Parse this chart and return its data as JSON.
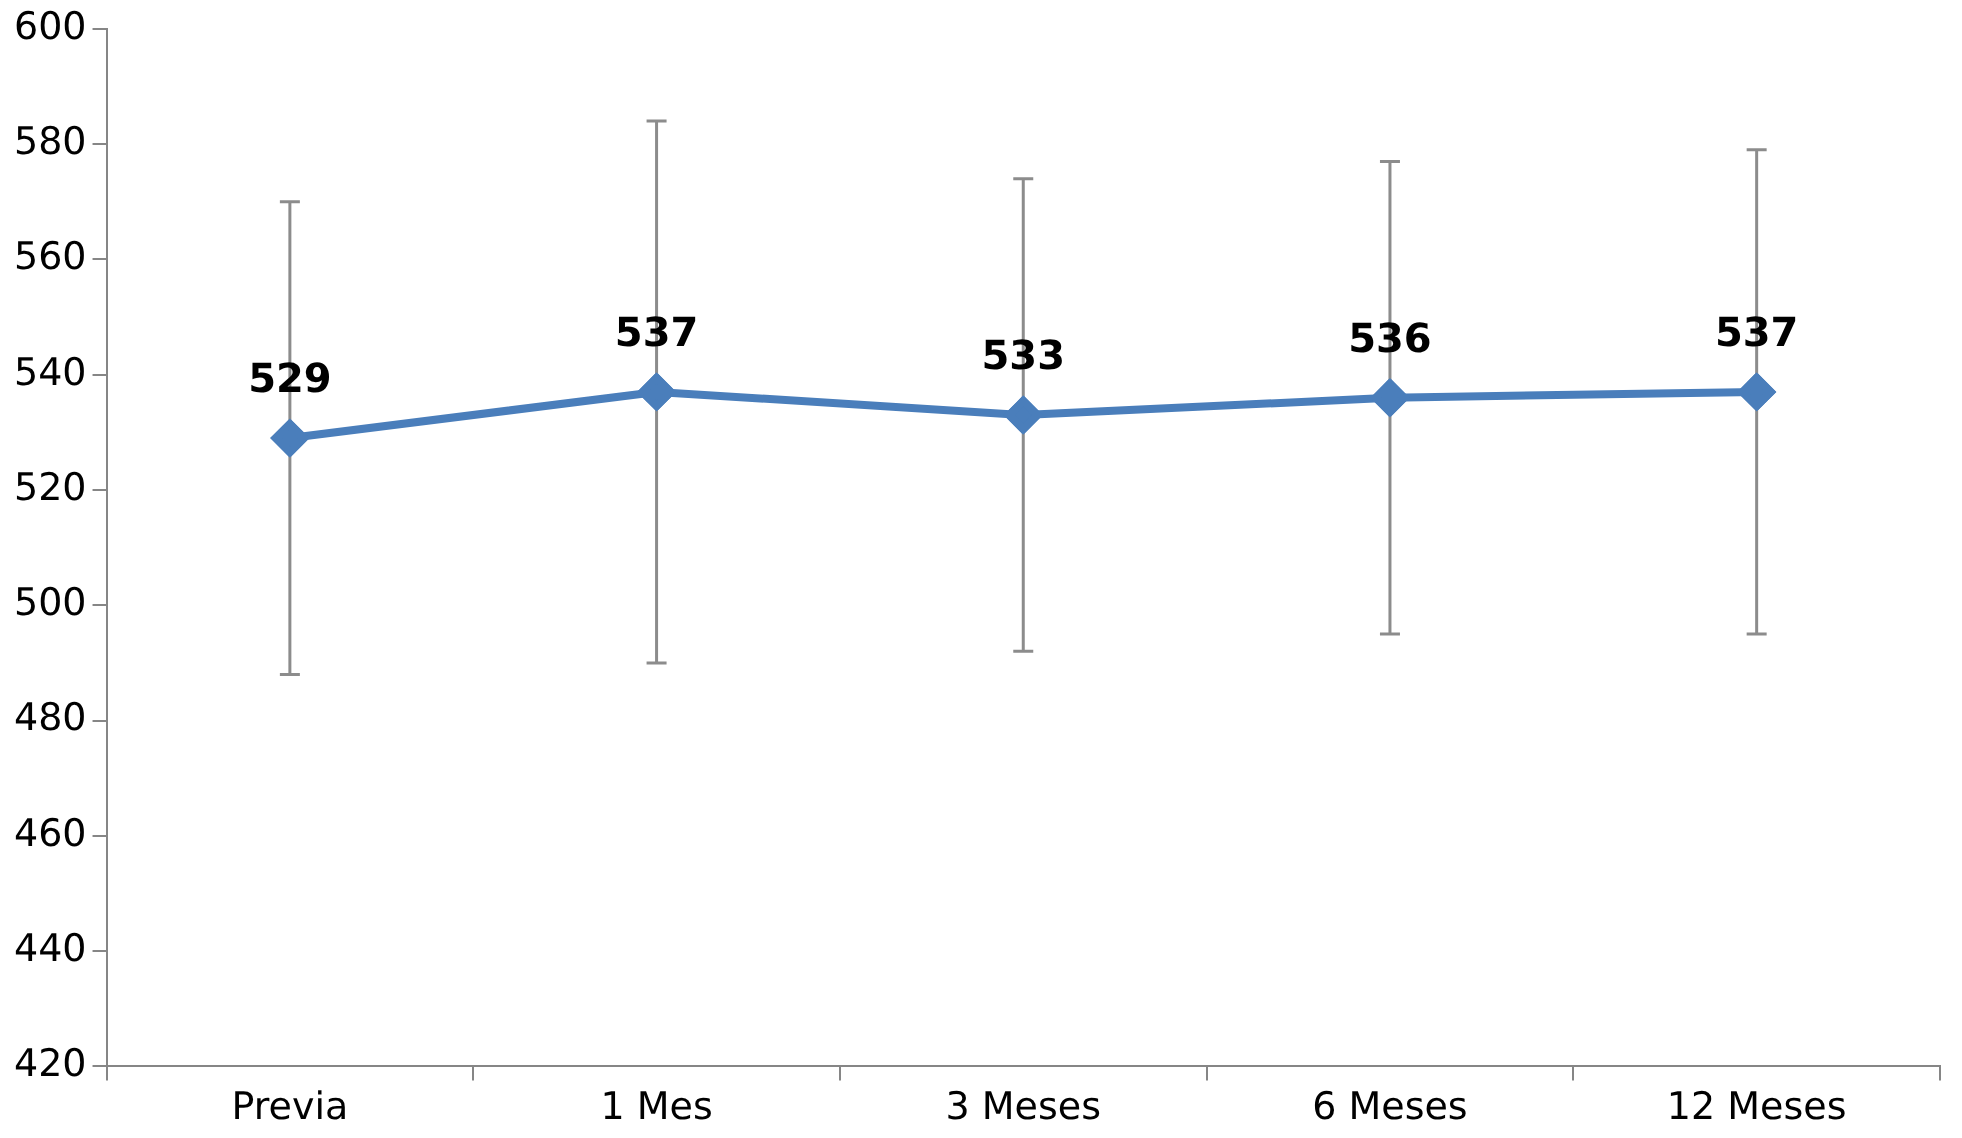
{
  "chart_data": {
    "type": "line",
    "categories": [
      "Previa",
      "1 Mes",
      "3 Meses",
      "6 Meses",
      "12 Meses"
    ],
    "series": [
      {
        "color": "#4a7ebb",
        "values": [
          529,
          537,
          533,
          536,
          537
        ],
        "errors": [
          41,
          47,
          41,
          41,
          42
        ]
      }
    ],
    "ylim": [
      420,
      600
    ],
    "yticks": [
      420,
      440,
      460,
      480,
      500,
      520,
      540,
      560,
      580,
      600
    ],
    "data_labels": true,
    "marker": "diamond",
    "line_style": "solid",
    "grid": false,
    "legend": false
  }
}
